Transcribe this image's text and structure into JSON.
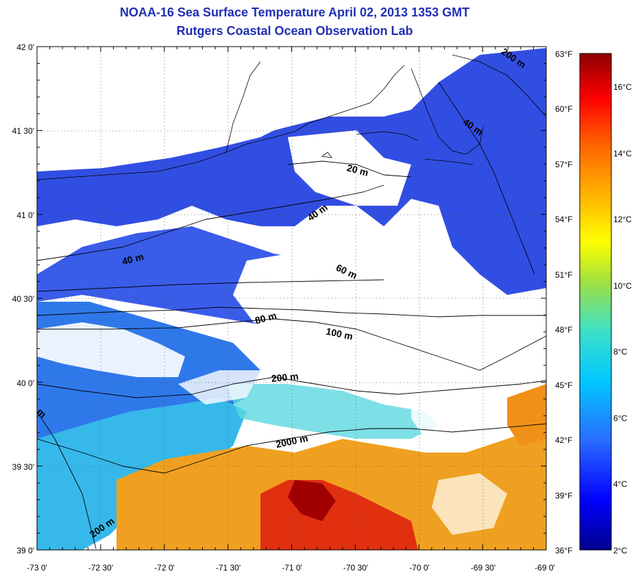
{
  "header": {
    "title": "NOAA-16 Sea Surface Temperature April 02, 2013 1353 GMT",
    "subtitle": "Rutgers Coastal Ocean Observation Lab"
  },
  "map": {
    "lat_labels": [
      "42 0'",
      "41 30'",
      "41 0'",
      "40 30'",
      "40 0'",
      "39 30'",
      "39 0'"
    ],
    "lon_labels": [
      "-73 0'",
      "-72 30'",
      "-72 0'",
      "-71 30'",
      "-71 0'",
      "-70 30'",
      "-70 0'",
      "-69 30'",
      "-69 0'"
    ],
    "lat_range": [
      39.0,
      42.0
    ],
    "lon_range": [
      -73.0,
      -69.0
    ],
    "contour_labels": [
      "200 m",
      "40 m",
      "20 m",
      "40 m",
      "40 m",
      "60 m",
      "80 m",
      "100 m",
      "200 m",
      "2000 m",
      "200 m",
      "m"
    ]
  },
  "colorbar": {
    "fahrenheit_labels": [
      "63°F",
      "60°F",
      "57°F",
      "54°F",
      "51°F",
      "48°F",
      "45°F",
      "42°F",
      "39°F",
      "36°F"
    ],
    "celsius_labels": [
      "16°C",
      "14°C",
      "12°C",
      "10°C",
      "8°C",
      "6°C",
      "4°C",
      "2°C"
    ],
    "range_c": [
      2,
      17.2
    ],
    "colors": [
      "#00008c",
      "#0000ff",
      "#2a6cff",
      "#00c8ff",
      "#3ce0c8",
      "#a0e040",
      "#ffff00",
      "#ffb000",
      "#ff6000",
      "#ff0000",
      "#8c0000"
    ]
  },
  "legend_colors": {
    "cold": "#1a3fe0",
    "cool": "#2f7ce8",
    "mild": "#40c8e8",
    "warm": "#f0a020",
    "hot": "#d02010",
    "land": "#ffffff",
    "title_color": "#1f2fb4"
  }
}
